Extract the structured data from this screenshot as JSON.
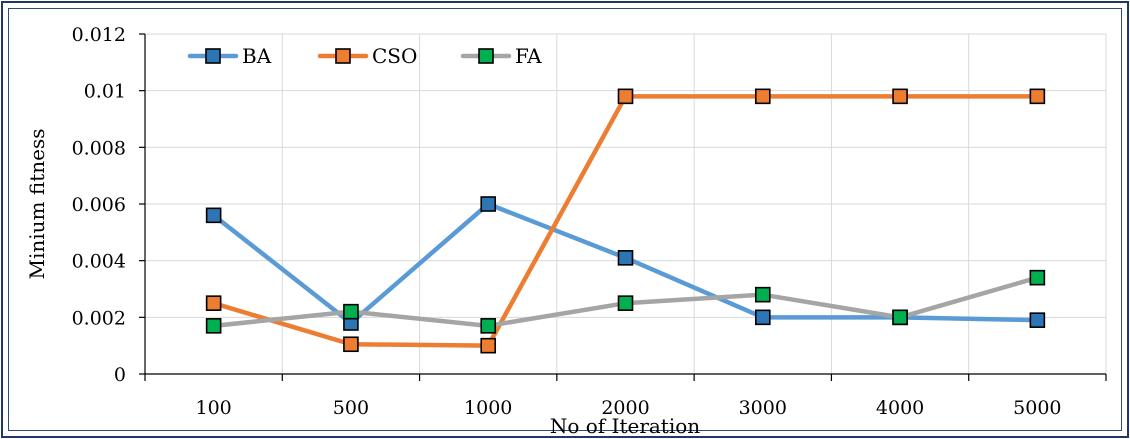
{
  "chart_data": {
    "type": "line",
    "categories": [
      "100",
      "500",
      "1000",
      "2000",
      "3000",
      "4000",
      "5000"
    ],
    "series": [
      {
        "name": "BA",
        "color": "#5b9bd5",
        "marker_color": "#2e75b6",
        "values": [
          0.0056,
          0.0018,
          0.006,
          0.0041,
          0.002,
          0.002,
          0.0019
        ]
      },
      {
        "name": "CSO",
        "color": "#ed7d31",
        "marker_color": "#ed7d31",
        "values": [
          0.0025,
          0.00105,
          0.001,
          0.0098,
          0.0098,
          0.0098,
          0.0098
        ]
      },
      {
        "name": "FA",
        "color": "#a5a5a5",
        "marker_color": "#00b050",
        "values": [
          0.0017,
          0.0022,
          0.0017,
          0.0025,
          0.0028,
          0.002,
          0.0034
        ]
      }
    ],
    "title": "",
    "xlabel": "No of Iteration",
    "ylabel": "Minium fitness",
    "ylim": [
      0,
      0.012
    ],
    "yticks": [
      "0",
      "0.002",
      "0.004",
      "0.006",
      "0.008",
      "0.01",
      "0.012"
    ],
    "grid": true,
    "legend_position": "top-left"
  }
}
